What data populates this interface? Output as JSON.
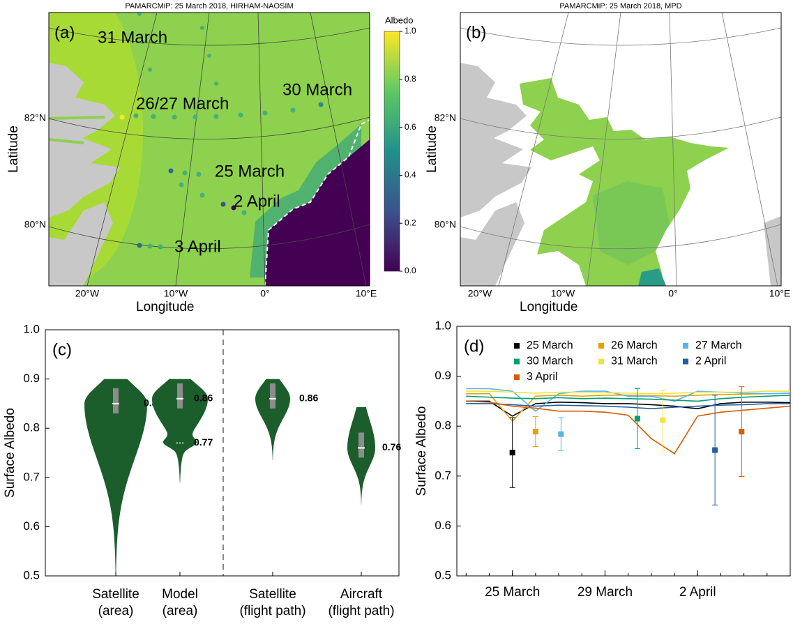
{
  "chart_data": [
    {
      "type": "map",
      "panel": "(a)",
      "title": "PAMARCMiP: 25 March 2018, HIRHAM-NAOSIM",
      "xlabel": "Longitude",
      "ylabel": "Latitude",
      "lat_labels": [
        "82°N",
        "80°N"
      ],
      "lon_labels": [
        "20°W",
        "10°W",
        "0°",
        "10°E"
      ],
      "annotations": [
        "31 March",
        "26/27 March",
        "30 March",
        "25 March",
        "2 April",
        "3 April"
      ],
      "colorbar": {
        "title": "Albedo",
        "lim": [
          0,
          1
        ],
        "ticks": [
          {
            "value": 0,
            "label": "0.0"
          },
          0.2,
          0.4,
          0.6,
          0.8,
          {
            "value": 1,
            "label": "1.0"
          }
        ]
      }
    },
    {
      "type": "map",
      "panel": "(b)",
      "title": "PAMARCMiP: 25 March 2018, MPD",
      "xlabel": "Longitude",
      "ylabel": "Latitude",
      "lat_labels": [
        "82°N",
        "80°N"
      ],
      "lon_labels": [
        "20°W",
        "10°W",
        "0°",
        "10°E"
      ]
    },
    {
      "type": "violin",
      "panel": "(c)",
      "ylabel": "Surface Albedo",
      "categories": [
        [
          "Satellite",
          "(area)"
        ],
        [
          "Model",
          "(area)"
        ],
        [
          "Satellite",
          "(flight path)"
        ],
        [
          "Aircraft",
          "(flight path)"
        ]
      ],
      "values": [
        0.85,
        0.86,
        0.86,
        0.76
      ],
      "modes": [
        null,
        0.77,
        null,
        null
      ],
      "min": [
        0.5,
        0.69,
        0.735,
        0.645
      ],
      "max": [
        0.9,
        0.9,
        0.9,
        0.843
      ],
      "color": "#1b5e2c",
      "ylim": [
        0.5,
        1
      ],
      "yticks": [
        0.5,
        0.6,
        0.7,
        0.8,
        0.9,
        {
          "value": 1,
          "label": "1.0"
        }
      ]
    },
    {
      "type": "line",
      "panel": "(d)",
      "ylabel": "Surface Albedo",
      "x": [
        82,
        83,
        84,
        85,
        86,
        87,
        88,
        89,
        90,
        91,
        92,
        93,
        94,
        95,
        96
      ],
      "xlim": [
        81.6,
        96
      ],
      "xticks": [
        {
          "value": 84,
          "label": "25 March"
        },
        {
          "value": 88,
          "label": "29 March"
        },
        {
          "value": 92,
          "label": "2 April"
        }
      ],
      "ylim": [
        0.5,
        1
      ],
      "yticks": [
        0.5,
        0.6,
        0.7,
        0.8,
        0.9,
        {
          "value": 1,
          "label": "1.0"
        }
      ],
      "series": [
        {
          "name": "25 March",
          "color": "#000000",
          "values": [
            0.85,
            0.85,
            0.82,
            0.845,
            0.848,
            0.847,
            0.845,
            0.845,
            0.843,
            0.84,
            0.835,
            0.845,
            0.848,
            0.848,
            0.847
          ],
          "point": {
            "x": 84,
            "value": 0.747,
            "error": 0.07
          }
        },
        {
          "name": "26 March",
          "color": "#e69f00",
          "values": [
            0.865,
            0.865,
            0.81,
            0.86,
            0.862,
            0.86,
            0.862,
            0.862,
            0.861,
            0.86,
            0.862,
            0.863,
            0.864,
            0.865,
            0.866
          ],
          "point": {
            "x": 85,
            "value": 0.789,
            "error": 0.03
          }
        },
        {
          "name": "27 March",
          "color": "#56b4e9",
          "values": [
            0.875,
            0.875,
            0.87,
            0.83,
            0.865,
            0.87,
            0.87,
            0.86,
            0.86,
            0.85,
            0.87,
            0.868,
            0.866,
            0.865,
            0.866
          ],
          "point": {
            "x": 86.1,
            "value": 0.784,
            "error": 0.033
          }
        },
        {
          "name": "30 March",
          "color": "#009e73",
          "values": [
            0.86,
            0.858,
            0.856,
            0.855,
            0.857,
            0.855,
            0.856,
            0.855,
            0.854,
            0.852,
            0.85,
            0.855,
            0.858,
            0.86,
            0.862
          ],
          "point": {
            "x": 89.4,
            "value": 0.815,
            "error": 0.06
          }
        },
        {
          "name": "31 March",
          "color": "#f0e442",
          "values": [
            0.87,
            0.87,
            0.868,
            0.866,
            0.868,
            0.868,
            0.867,
            0.866,
            0.865,
            0.866,
            0.868,
            0.868,
            0.868,
            0.87,
            0.87
          ],
          "point": {
            "x": 90.5,
            "value": 0.812,
            "error": 0.06
          }
        },
        {
          "name": "2 April",
          "color": "#1f5fa0",
          "values": [
            0.845,
            0.845,
            0.843,
            0.84,
            0.842,
            0.841,
            0.84,
            0.838,
            0.835,
            0.838,
            0.84,
            0.842,
            0.843,
            0.845,
            0.845
          ],
          "point": {
            "x": 92.75,
            "value": 0.752,
            "error": 0.11
          }
        },
        {
          "name": "3 April",
          "color": "#d55e00",
          "values": [
            0.85,
            0.848,
            0.84,
            0.836,
            0.83,
            0.83,
            0.828,
            0.822,
            0.775,
            0.745,
            0.82,
            0.828,
            0.832,
            0.836,
            0.84
          ],
          "point": {
            "x": 93.9,
            "value": 0.789,
            "error": 0.09
          }
        }
      ]
    }
  ]
}
